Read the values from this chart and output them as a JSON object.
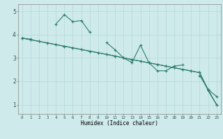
{
  "x": [
    0,
    1,
    2,
    3,
    4,
    5,
    6,
    7,
    8,
    9,
    10,
    11,
    12,
    13,
    14,
    15,
    16,
    17,
    18,
    19,
    20,
    21,
    22,
    23
  ],
  "line1": [
    3.85,
    3.8,
    null,
    null,
    4.45,
    4.85,
    4.55,
    4.6,
    4.1,
    null,
    3.65,
    3.35,
    3.0,
    2.8,
    3.55,
    2.8,
    2.45,
    2.45,
    2.65,
    2.7,
    null,
    2.25,
    1.65,
    1.35
  ],
  "line2": [
    3.85,
    3.78,
    3.71,
    3.64,
    3.57,
    3.5,
    3.43,
    3.36,
    3.29,
    3.22,
    3.15,
    3.08,
    3.0,
    2.93,
    2.86,
    2.79,
    2.72,
    2.65,
    2.58,
    2.51,
    2.44,
    2.37,
    1.65,
    1.0
  ],
  "line3": [
    3.85,
    3.78,
    3.71,
    3.64,
    3.57,
    3.5,
    3.43,
    3.36,
    3.29,
    3.22,
    3.15,
    3.08,
    3.0,
    2.93,
    2.86,
    2.79,
    2.72,
    2.65,
    2.58,
    2.51,
    2.44,
    2.37,
    1.6,
    1.0
  ],
  "color": "#2e7d6e",
  "bg_color": "#ceeaea",
  "grid_color": "#b5d8d8",
  "ylim": [
    0.6,
    5.3
  ],
  "xlabel": "Humidex (Indice chaleur)",
  "xlim": [
    -0.5,
    23.5
  ],
  "xtick_labels": [
    "0",
    "1",
    "2",
    "3",
    "4",
    "5",
    "6",
    "7",
    "8",
    "9",
    "10",
    "11",
    "12",
    "13",
    "14",
    "15",
    "16",
    "17",
    "18",
    "19",
    "20",
    "21",
    "22",
    "23"
  ],
  "ytick_vals": [
    1,
    2,
    3,
    4,
    5
  ],
  "ytick_labels": [
    "1",
    "2",
    "3",
    "4",
    "5"
  ]
}
